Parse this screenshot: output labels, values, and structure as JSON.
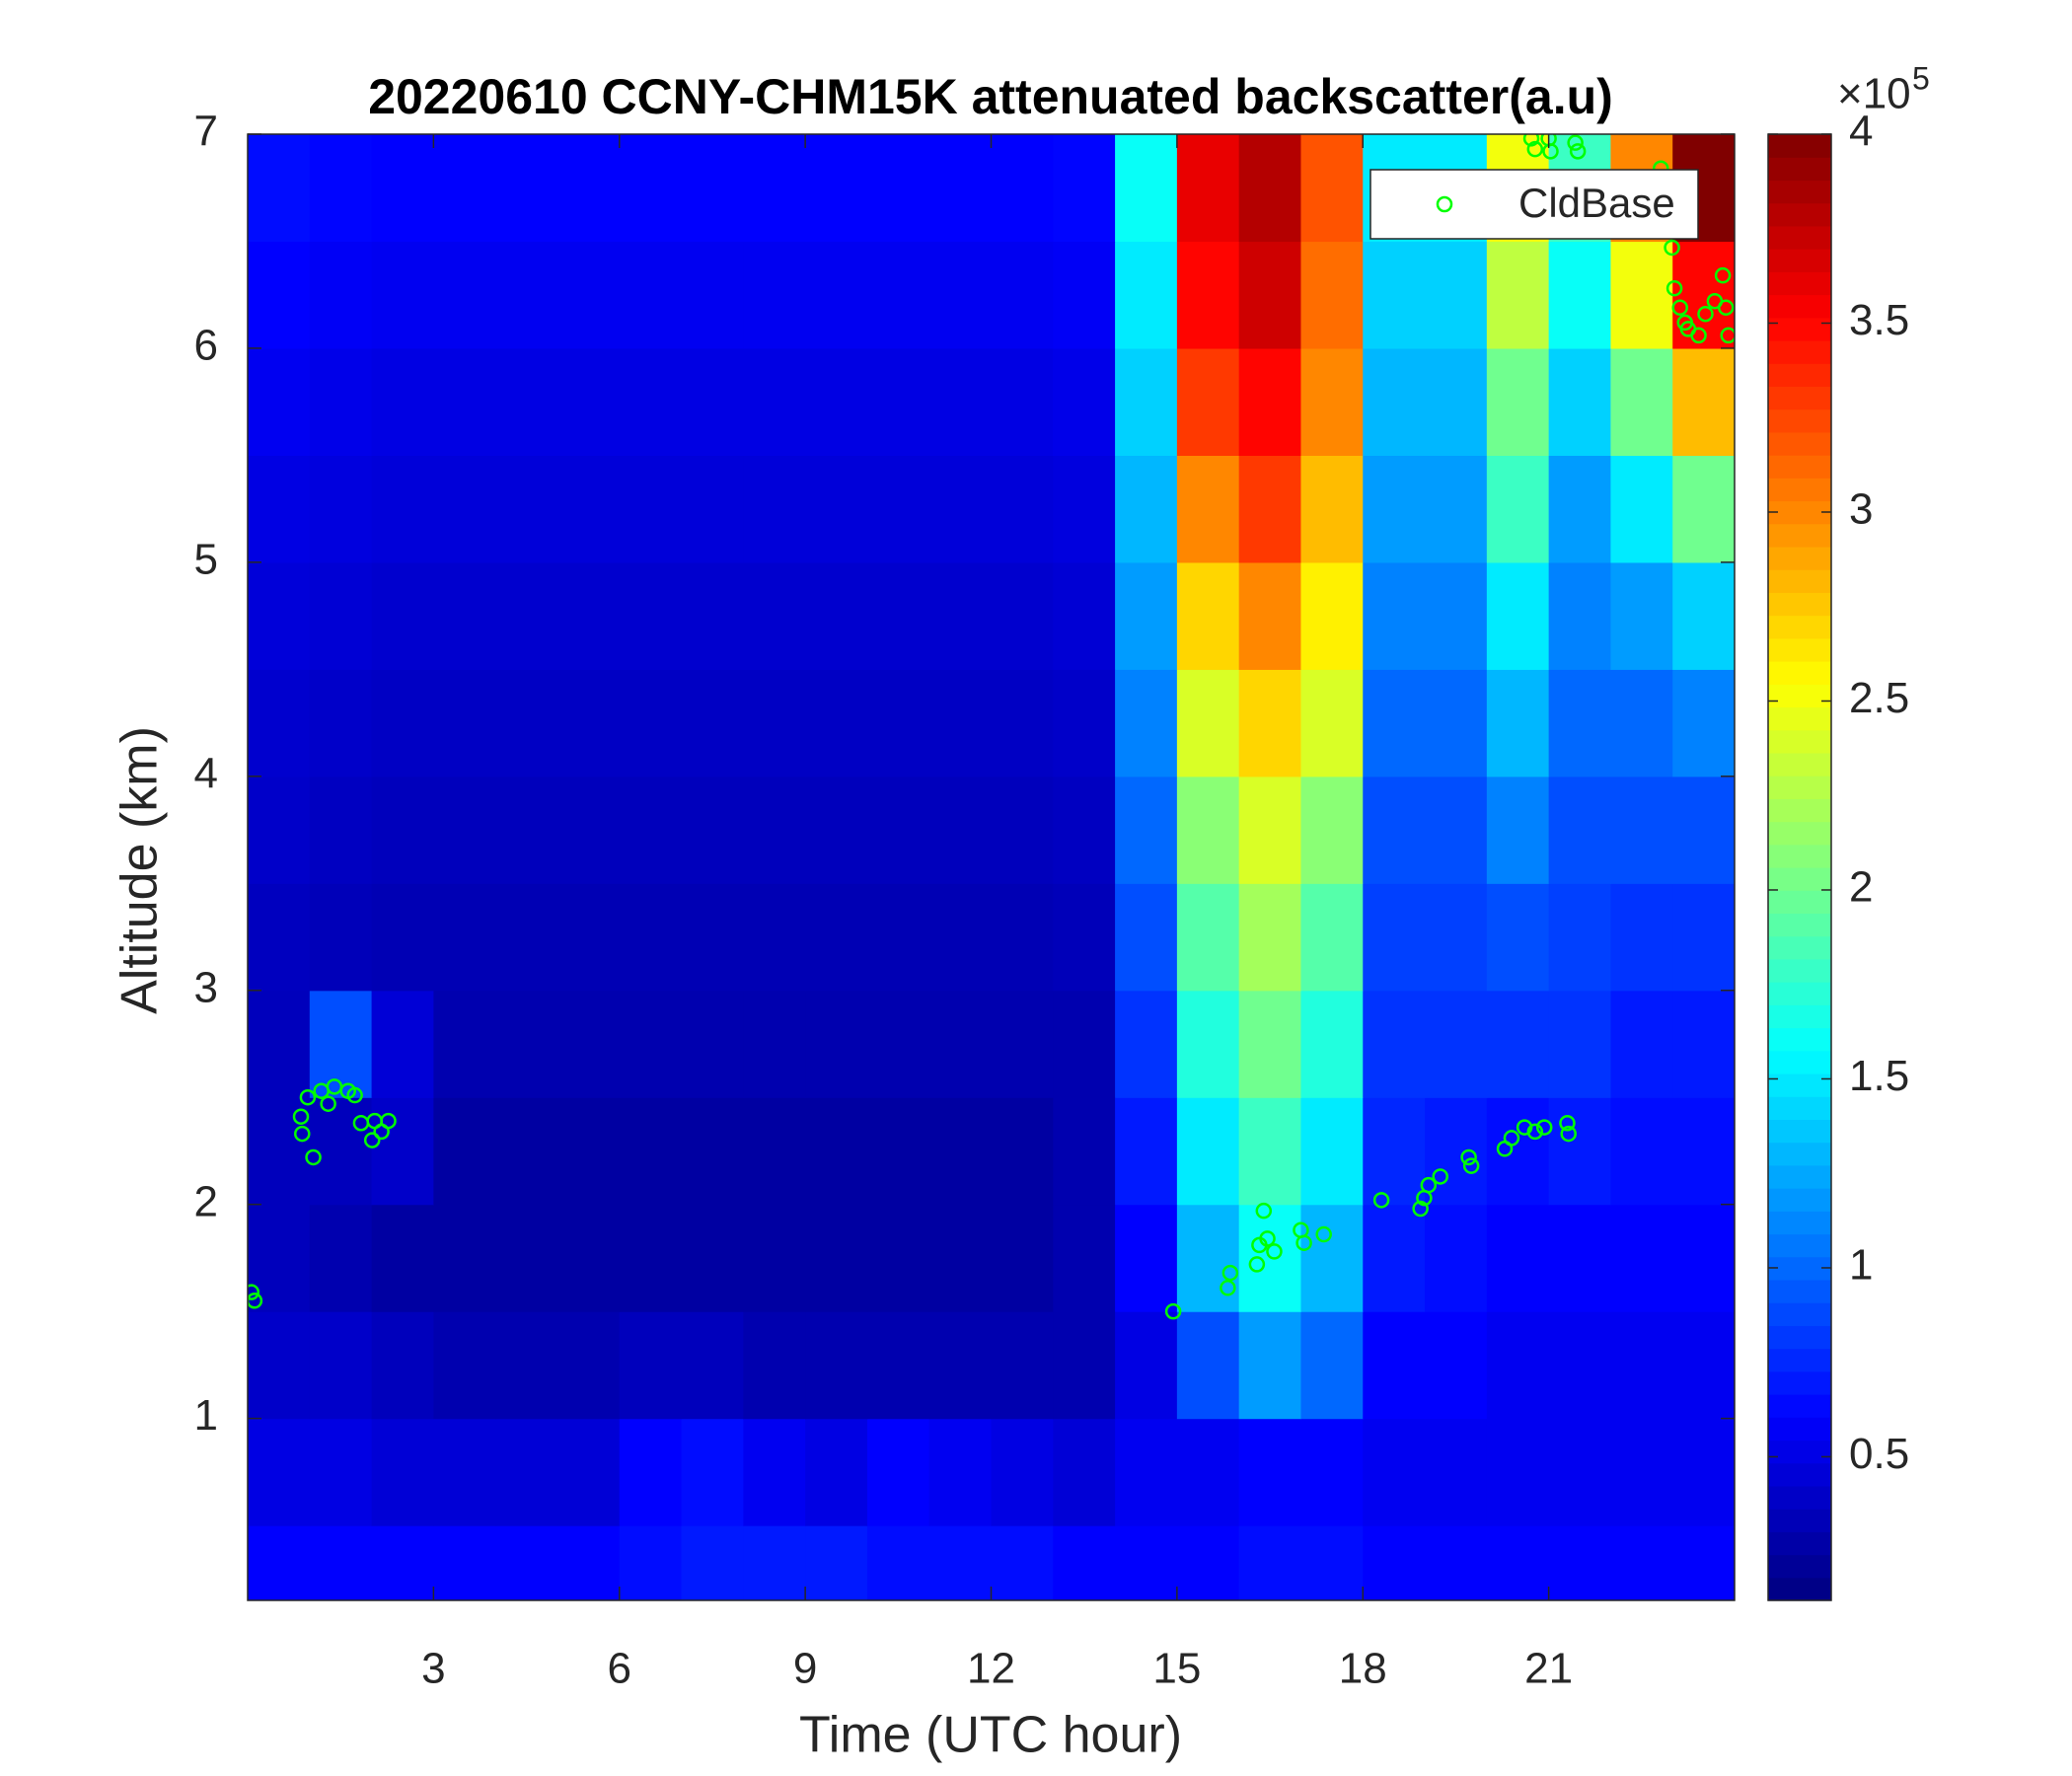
{
  "chart_data": {
    "type": "heatmap",
    "title": "20220610 CCNY-CHM15K attenuated backscatter(a.u)",
    "x_label": "Time (UTC hour)",
    "y_label": "Altitude (km)",
    "xlim": [
      0,
      24
    ],
    "ylim": [
      0.15,
      7
    ],
    "xticks": [
      3,
      6,
      9,
      12,
      15,
      18,
      21
    ],
    "yticks": [
      1,
      2,
      3,
      4,
      5,
      6,
      7
    ],
    "colormap": "jet",
    "clim": [
      0.12,
      4
    ],
    "colorbar_ticks": [
      0.5,
      1,
      1.5,
      2,
      2.5,
      3,
      3.5,
      4
    ],
    "colorbar_scale": {
      "base": "×10",
      "exponent": "5"
    },
    "x_edges": [
      0,
      1,
      2,
      3,
      4,
      5,
      6,
      7,
      8,
      9,
      10,
      11,
      12,
      13,
      14,
      15,
      16,
      17,
      18,
      19,
      20,
      21,
      22,
      23,
      24
    ],
    "y_edges": [
      0.15,
      0.5,
      1,
      1.5,
      2,
      2.5,
      3,
      3.5,
      4,
      4.5,
      5,
      5.5,
      6,
      6.5,
      7
    ],
    "z": [
      [
        0.6,
        0.6,
        0.6,
        0.6,
        0.6,
        0.6,
        0.65,
        0.7,
        0.7,
        0.7,
        0.65,
        0.65,
        0.65,
        0.6,
        0.6,
        0.6,
        0.65,
        0.65,
        0.6,
        0.6,
        0.6,
        0.6,
        0.6,
        0.6
      ],
      [
        0.5,
        0.5,
        0.45,
        0.45,
        0.45,
        0.45,
        0.6,
        0.65,
        0.55,
        0.5,
        0.6,
        0.55,
        0.5,
        0.45,
        0.55,
        0.55,
        0.6,
        0.6,
        0.55,
        0.55,
        0.55,
        0.55,
        0.55,
        0.55
      ],
      [
        0.4,
        0.4,
        0.35,
        0.3,
        0.3,
        0.3,
        0.35,
        0.35,
        0.3,
        0.3,
        0.3,
        0.3,
        0.3,
        0.3,
        0.5,
        0.9,
        1.2,
        1.0,
        0.6,
        0.6,
        0.55,
        0.55,
        0.55,
        0.55
      ],
      [
        0.35,
        0.3,
        0.25,
        0.25,
        0.25,
        0.25,
        0.25,
        0.25,
        0.25,
        0.25,
        0.25,
        0.25,
        0.25,
        0.3,
        0.6,
        1.3,
        1.6,
        1.3,
        0.7,
        0.65,
        0.6,
        0.6,
        0.6,
        0.6
      ],
      [
        0.35,
        0.35,
        0.4,
        0.25,
        0.25,
        0.25,
        0.25,
        0.25,
        0.25,
        0.25,
        0.25,
        0.25,
        0.25,
        0.3,
        0.7,
        1.5,
        1.8,
        1.5,
        0.75,
        0.7,
        0.65,
        0.7,
        0.65,
        0.65
      ],
      [
        0.35,
        0.9,
        0.45,
        0.3,
        0.3,
        0.3,
        0.3,
        0.3,
        0.3,
        0.3,
        0.3,
        0.3,
        0.3,
        0.3,
        0.8,
        1.7,
        2.0,
        1.7,
        0.8,
        0.8,
        0.8,
        0.8,
        0.7,
        0.7
      ],
      [
        0.36,
        0.34,
        0.32,
        0.32,
        0.32,
        0.32,
        0.32,
        0.32,
        0.32,
        0.32,
        0.32,
        0.32,
        0.32,
        0.34,
        0.9,
        1.9,
        2.2,
        1.9,
        0.85,
        0.85,
        0.9,
        0.85,
        0.8,
        0.8
      ],
      [
        0.4,
        0.37,
        0.35,
        0.35,
        0.35,
        0.35,
        0.35,
        0.35,
        0.35,
        0.35,
        0.35,
        0.35,
        0.35,
        0.37,
        1.0,
        2.1,
        2.4,
        2.1,
        0.9,
        0.9,
        1.1,
        0.9,
        0.9,
        0.9
      ],
      [
        0.42,
        0.4,
        0.38,
        0.38,
        0.38,
        0.38,
        0.38,
        0.38,
        0.38,
        0.38,
        0.38,
        0.38,
        0.38,
        0.4,
        1.1,
        2.4,
        2.7,
        2.4,
        1.0,
        1.0,
        1.3,
        1.0,
        1.0,
        1.1
      ],
      [
        0.46,
        0.44,
        0.42,
        0.42,
        0.42,
        0.42,
        0.42,
        0.42,
        0.42,
        0.42,
        0.42,
        0.42,
        0.42,
        0.44,
        1.2,
        2.7,
        3.0,
        2.6,
        1.1,
        1.1,
        1.5,
        1.1,
        1.2,
        1.4
      ],
      [
        0.5,
        0.48,
        0.46,
        0.46,
        0.46,
        0.46,
        0.46,
        0.46,
        0.46,
        0.46,
        0.46,
        0.46,
        0.46,
        0.48,
        1.3,
        3.0,
        3.3,
        2.8,
        1.2,
        1.2,
        1.8,
        1.2,
        1.5,
        2.0
      ],
      [
        0.55,
        0.52,
        0.5,
        0.5,
        0.5,
        0.5,
        0.5,
        0.5,
        0.5,
        0.5,
        0.5,
        0.5,
        0.5,
        0.52,
        1.4,
        3.3,
        3.5,
        3.0,
        1.3,
        1.3,
        2.0,
        1.4,
        2.0,
        2.8
      ],
      [
        0.6,
        0.57,
        0.55,
        0.55,
        0.55,
        0.55,
        0.55,
        0.55,
        0.55,
        0.55,
        0.55,
        0.55,
        0.55,
        0.57,
        1.5,
        3.5,
        3.7,
        3.1,
        1.4,
        1.4,
        2.3,
        1.6,
        2.5,
        3.5
      ],
      [
        0.65,
        0.62,
        0.6,
        0.6,
        0.6,
        0.6,
        0.6,
        0.6,
        0.6,
        0.6,
        0.6,
        0.6,
        0.6,
        0.62,
        1.6,
        3.6,
        3.8,
        3.2,
        1.5,
        1.5,
        2.5,
        1.8,
        3.0,
        4.0
      ]
    ],
    "legend": "upper right",
    "overlay": {
      "type": "scatter",
      "name": "CldBase",
      "color": "#00ff00",
      "x": [
        0.06,
        0.11,
        0.86,
        0.88,
        0.97,
        1.06,
        1.19,
        1.3,
        1.4,
        1.62,
        1.73,
        1.83,
        2.01,
        2.05,
        2.16,
        2.27,
        14.94,
        15.82,
        15.86,
        16.29,
        16.33,
        16.4,
        16.46,
        16.57,
        17.0,
        17.05,
        17.37,
        18.3,
        18.93,
        18.99,
        19.06,
        19.25,
        19.71,
        19.75,
        20.29,
        20.4,
        20.61,
        20.78,
        20.93,
        21.3,
        21.32,
        20.72,
        20.78,
        21.0,
        21.03,
        21.43,
        21.47,
        22.81,
        22.99,
        23.03,
        23.12,
        23.2,
        23.25,
        23.42,
        23.53,
        23.68,
        23.81,
        23.86,
        23.9
      ],
      "y": [
        1.59,
        1.55,
        2.41,
        2.33,
        2.5,
        2.22,
        2.53,
        2.47,
        2.55,
        2.53,
        2.51,
        2.38,
        2.3,
        2.39,
        2.34,
        2.39,
        1.5,
        1.61,
        1.68,
        1.72,
        1.81,
        1.97,
        1.84,
        1.78,
        1.88,
        1.82,
        1.86,
        2.02,
        1.98,
        2.03,
        2.09,
        2.13,
        2.22,
        2.18,
        2.26,
        2.31,
        2.36,
        2.34,
        2.36,
        2.38,
        2.33,
        6.98,
        6.93,
        6.98,
        6.92,
        6.96,
        6.92,
        6.84,
        6.47,
        6.28,
        6.19,
        6.12,
        6.09,
        6.06,
        6.16,
        6.22,
        6.34,
        6.19,
        6.06
      ]
    }
  }
}
